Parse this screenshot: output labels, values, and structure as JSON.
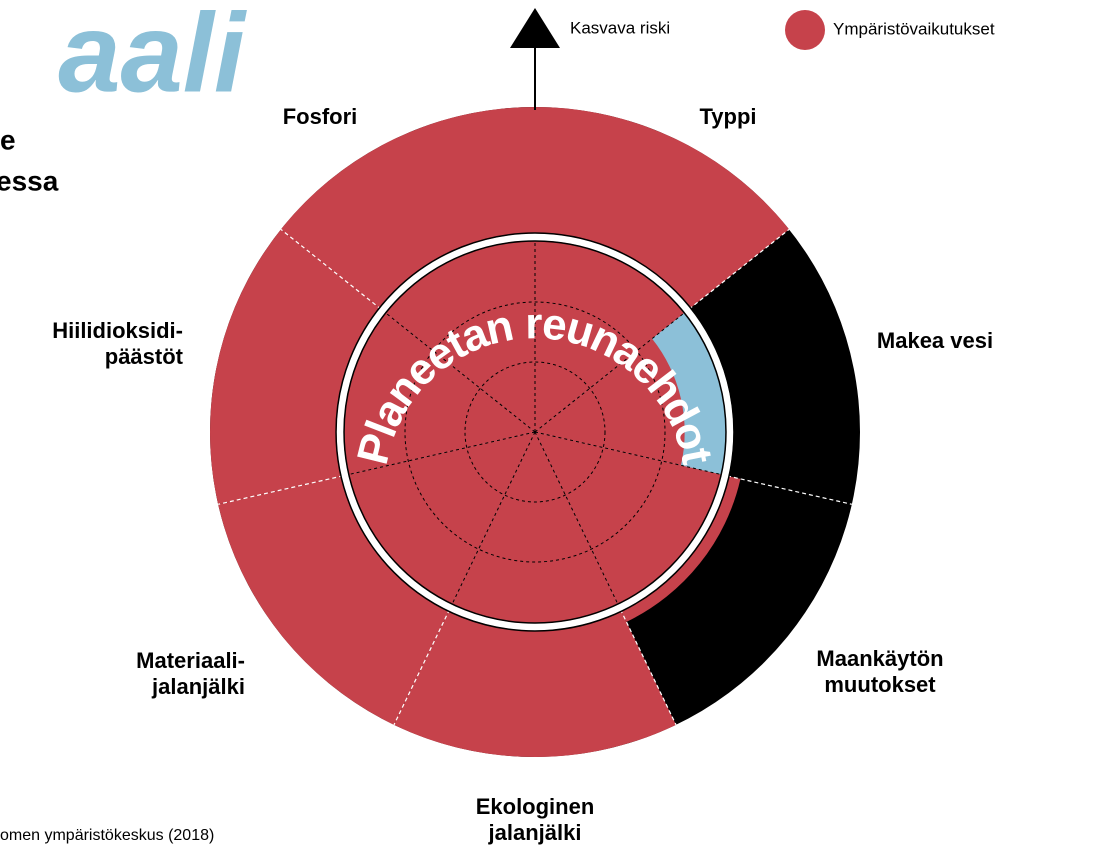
{
  "chart_data": {
    "type": "polar",
    "title_fragments": [
      "aali",
      "e",
      "essa"
    ],
    "arc_label": "Planeetan reunaehdot",
    "axis_label": "Kasvava riski",
    "source": "omen ympäristökeskus (2018)",
    "categories": [
      [
        "Typpi"
      ],
      [
        "Makea vesi"
      ],
      [
        "Maankäytön",
        "muutokset"
      ],
      [
        "Ekologinen",
        "jalanjälki"
      ],
      [
        "Materiaali-",
        "jalanjälki"
      ],
      [
        "Hiilidioksidi-",
        "päästöt"
      ],
      [
        "Fosfori"
      ]
    ],
    "series": [
      {
        "name": "Ympäristövaikutukset",
        "color": "#c6424b",
        "values": [
          1.65,
          0.76,
          1.07,
          1.65,
          1.65,
          1.65,
          1.65
        ]
      }
    ],
    "boundary": 1,
    "rlim": [
      0,
      1.65
    ],
    "safe_color": "#8cc0d8",
    "risk_color": "#000000",
    "title_color": "#8cc0d8"
  }
}
